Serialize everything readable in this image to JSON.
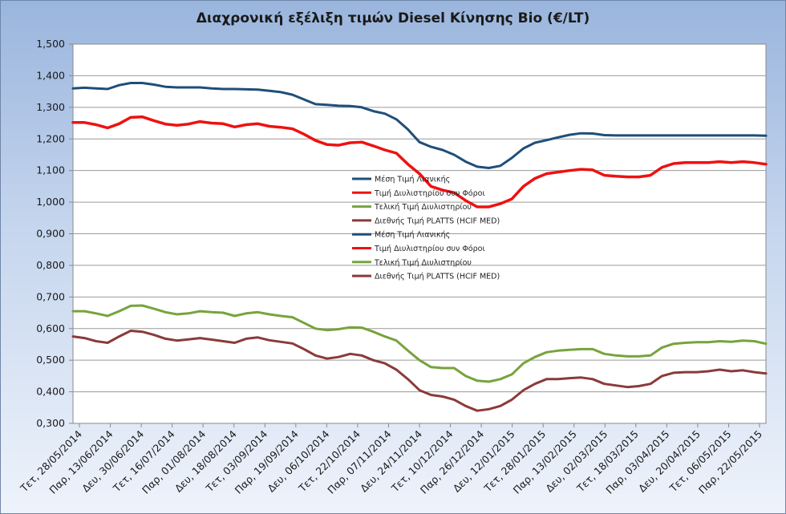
{
  "chart_data": {
    "type": "line",
    "title": "Διαχρονική εξέλιξη τιμών Diesel Κίνησης Bio (€/LT)",
    "xlabel": "",
    "ylabel": "",
    "ylim": [
      0.3,
      1.5
    ],
    "ytick_labels": [
      "0,300",
      "0,400",
      "0,500",
      "0,600",
      "0,700",
      "0,800",
      "0,900",
      "1,000",
      "1,100",
      "1,200",
      "1,300",
      "1,400",
      "1,500"
    ],
    "x_tick_labels": [
      "Τετ, 28/05/2014",
      "Παρ, 13/06/2014",
      "Δευ, 30/06/2014",
      "Τετ, 16/07/2014",
      "Παρ, 01/08/2014",
      "Δευ, 18/08/2014",
      "Τετ, 03/09/2014",
      "Παρ, 19/09/2014",
      "Δευ, 06/10/2014",
      "Τετ, 22/10/2014",
      "Παρ, 07/11/2014",
      "Δευ, 24/11/2014",
      "Τετ, 10/12/2014",
      "Παρ, 26/12/2014",
      "Δευ, 12/01/2015",
      "Τετ, 28/01/2015",
      "Παρ, 13/02/2015",
      "Δευ, 02/03/2015",
      "Τετ, 18/03/2015",
      "Παρ, 03/04/2015",
      "Δευ, 20/04/2015",
      "Τετ, 06/05/2015",
      "Παρ, 22/05/2015"
    ],
    "grid": true,
    "legend_position": "center",
    "series": [
      {
        "name": "Μέση Τιμή Λιανικής",
        "color": "#1f4e79",
        "values": [
          1.36,
          1.362,
          1.36,
          1.358,
          1.37,
          1.377,
          1.377,
          1.372,
          1.365,
          1.363,
          1.363,
          1.363,
          1.36,
          1.358,
          1.358,
          1.357,
          1.356,
          1.352,
          1.348,
          1.34,
          1.325,
          1.31,
          1.308,
          1.305,
          1.304,
          1.3,
          1.288,
          1.28,
          1.262,
          1.23,
          1.19,
          1.175,
          1.165,
          1.15,
          1.128,
          1.112,
          1.108,
          1.115,
          1.14,
          1.17,
          1.188,
          1.196,
          1.205,
          1.213,
          1.218,
          1.217,
          1.212,
          1.211,
          1.211,
          1.211,
          1.211,
          1.211,
          1.211,
          1.211,
          1.211,
          1.211,
          1.211,
          1.211,
          1.211,
          1.211,
          1.21
        ]
      },
      {
        "name": "Τιμή Διυλιστηρίου  συν Φόροι",
        "color": "#ee1111",
        "values": [
          1.252,
          1.252,
          1.245,
          1.235,
          1.248,
          1.268,
          1.27,
          1.258,
          1.247,
          1.243,
          1.247,
          1.255,
          1.25,
          1.248,
          1.238,
          1.245,
          1.248,
          1.24,
          1.237,
          1.232,
          1.215,
          1.195,
          1.182,
          1.18,
          1.188,
          1.19,
          1.178,
          1.165,
          1.155,
          1.12,
          1.09,
          1.05,
          1.038,
          1.03,
          1.005,
          0.985,
          0.985,
          0.995,
          1.01,
          1.05,
          1.075,
          1.09,
          1.095,
          1.1,
          1.104,
          1.102,
          1.085,
          1.082,
          1.08,
          1.08,
          1.085,
          1.11,
          1.122,
          1.125,
          1.125,
          1.125,
          1.128,
          1.125,
          1.128,
          1.125,
          1.12
        ]
      },
      {
        "name": "Τελική Τιμή Διυλιστηρίου",
        "color": "#77a33c",
        "values": [
          0.655,
          0.655,
          0.648,
          0.64,
          0.655,
          0.672,
          0.673,
          0.663,
          0.652,
          0.645,
          0.648,
          0.655,
          0.652,
          0.65,
          0.64,
          0.648,
          0.652,
          0.645,
          0.64,
          0.636,
          0.618,
          0.6,
          0.595,
          0.598,
          0.604,
          0.603,
          0.59,
          0.575,
          0.562,
          0.53,
          0.5,
          0.478,
          0.475,
          0.475,
          0.45,
          0.435,
          0.432,
          0.44,
          0.455,
          0.49,
          0.51,
          0.525,
          0.53,
          0.533,
          0.535,
          0.535,
          0.52,
          0.515,
          0.512,
          0.512,
          0.515,
          0.54,
          0.552,
          0.555,
          0.557,
          0.557,
          0.56,
          0.558,
          0.562,
          0.56,
          0.552
        ]
      },
      {
        "name": "Διεθνής Τιμή PLATTS (HCIF MED)",
        "color": "#8b3a3a",
        "values": [
          0.575,
          0.57,
          0.56,
          0.555,
          0.575,
          0.593,
          0.59,
          0.58,
          0.568,
          0.562,
          0.566,
          0.57,
          0.565,
          0.56,
          0.555,
          0.568,
          0.572,
          0.563,
          0.558,
          0.553,
          0.535,
          0.515,
          0.505,
          0.51,
          0.52,
          0.515,
          0.5,
          0.49,
          0.47,
          0.44,
          0.405,
          0.39,
          0.385,
          0.375,
          0.355,
          0.34,
          0.345,
          0.355,
          0.375,
          0.405,
          0.425,
          0.44,
          0.44,
          0.443,
          0.445,
          0.44,
          0.425,
          0.42,
          0.415,
          0.418,
          0.425,
          0.45,
          0.46,
          0.462,
          0.462,
          0.465,
          0.47,
          0.465,
          0.468,
          0.462,
          0.458
        ]
      }
    ],
    "legend_entries": [
      "Μέση Τιμή Λιανικής",
      "Τιμή Διυλιστηρίου  συν Φόροι",
      "Τελική Τιμή Διυλιστηρίου",
      "Διεθνής Τιμή PLATTS (HCIF MED)",
      "Μέση Τιμή Λιανικής",
      "Τιμή Διυλιστηρίου  συν Φόροι",
      "Τελική Τιμή Διυλιστηρίου",
      "Διεθνής Τιμή PLATTS (HCIF MED)"
    ],
    "legend_colors": [
      "#1f4e79",
      "#ee1111",
      "#77a33c",
      "#8b3a3a",
      "#1f4e79",
      "#ee1111",
      "#77a33c",
      "#8b3a3a"
    ]
  }
}
